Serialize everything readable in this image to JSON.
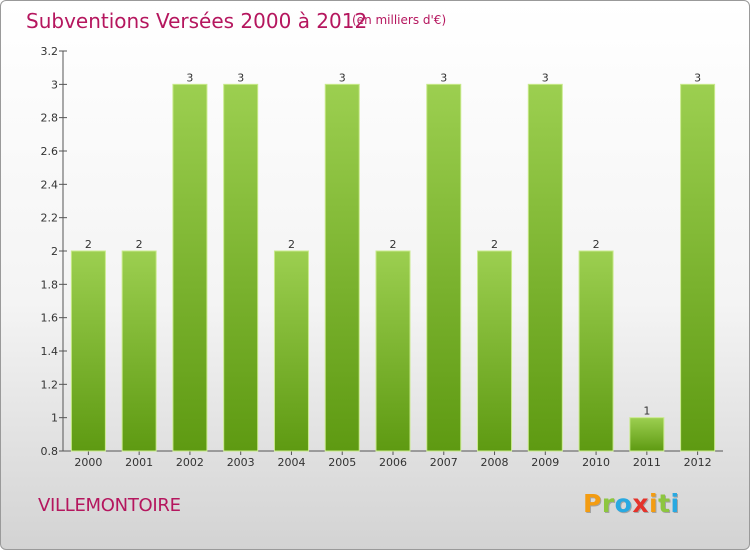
{
  "header": {
    "title": "Subventions Versées 2000 à 2012",
    "unit": "(en milliers d'€)"
  },
  "footer": {
    "town": "VILLEMONTOIRE",
    "logo": [
      "P",
      "r",
      "o",
      "x",
      "i",
      "t",
      "i"
    ],
    "logo_colors": [
      "#f39c12",
      "#8dc63f",
      "#29a9e1",
      "#e4332b",
      "#f39c12",
      "#8dc63f",
      "#29a9e1"
    ]
  },
  "colors": {
    "title": "#b5165e",
    "bar_top": "#9ccf50",
    "bar_bottom": "#5e9a12",
    "bar_edge": "#c9ea8c"
  },
  "chart_data": {
    "type": "bar",
    "categories": [
      "2000",
      "2001",
      "2002",
      "2003",
      "2004",
      "2005",
      "2006",
      "2007",
      "2008",
      "2009",
      "2010",
      "2011",
      "2012"
    ],
    "values": [
      2,
      2,
      3,
      3,
      2,
      3,
      2,
      3,
      2,
      3,
      2,
      1,
      3
    ],
    "data_labels": [
      "2",
      "2",
      "3",
      "3",
      "2",
      "3",
      "2",
      "3",
      "2",
      "3",
      "2",
      "1",
      "3"
    ],
    "yticks": [
      "0.8",
      "1",
      "1.2",
      "1.4",
      "1.6",
      "1.8",
      "2",
      "2.2",
      "2.4",
      "2.6",
      "2.8",
      "3",
      "3.2"
    ],
    "ylim": [
      0.8,
      3.2
    ],
    "grid": false
  }
}
